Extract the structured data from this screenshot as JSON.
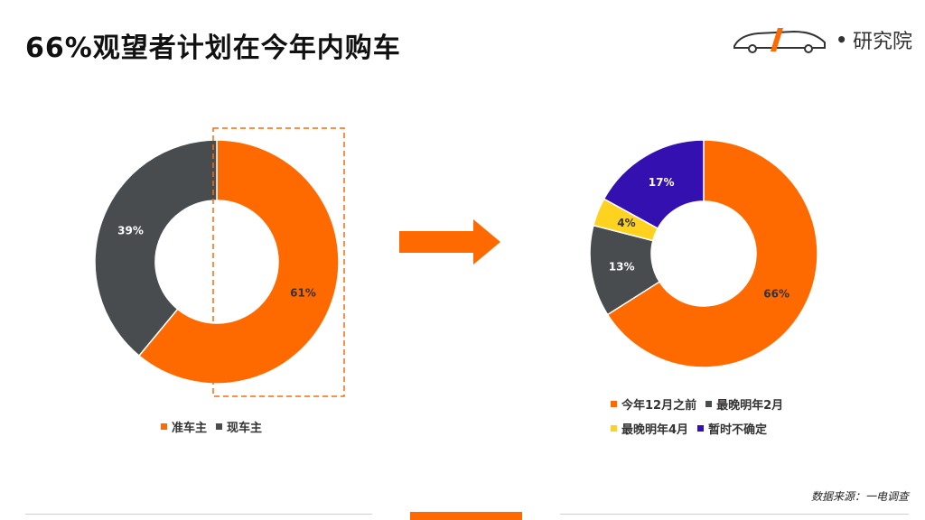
{
  "header": {
    "title": "66%观望者计划在今年内购车",
    "logo_text": "研究院"
  },
  "source": "数据来源：一电调查",
  "colors": {
    "orange": "#ff6a00",
    "gray": "#484c4f",
    "yellow": "#ffd21f",
    "purple": "#3410b0"
  },
  "chart_data": [
    {
      "type": "pie",
      "title": "",
      "donut": true,
      "slices": [
        {
          "name": "准车主",
          "value": 61,
          "label": "61%",
          "color": "#ff6a00"
        },
        {
          "name": "现车主",
          "value": 39,
          "label": "39%",
          "color": "#484c4f"
        }
      ],
      "legend": [
        "准车主",
        "现车主"
      ],
      "legend_position": "bottom",
      "highlight": "准车主"
    },
    {
      "type": "pie",
      "title": "",
      "donut": true,
      "slices": [
        {
          "name": "今年12月之前",
          "value": 66,
          "label": "66%",
          "color": "#ff6a00"
        },
        {
          "name": "最晚明年2月",
          "value": 13,
          "label": "13%",
          "color": "#484c4f"
        },
        {
          "name": "最晚明年4月",
          "value": 4,
          "label": "4%",
          "color": "#ffd21f"
        },
        {
          "name": "暂时不确定",
          "value": 17,
          "label": "17%",
          "color": "#3410b0"
        }
      ],
      "legend": [
        "今年12月之前",
        "最晚明年2月",
        "最晚明年4月",
        "暂时不确定"
      ],
      "legend_position": "bottom"
    }
  ]
}
